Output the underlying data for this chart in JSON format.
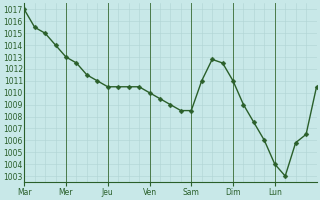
{
  "y_values": [
    1017,
    1015.5,
    1015,
    1014,
    1013,
    1012.5,
    1011.5,
    1011,
    1010.5,
    1010.5,
    1010.5,
    1010.5,
    1010,
    1009.5,
    1009,
    1008.5,
    1008.5,
    1011,
    1012.8,
    1012.5,
    1011,
    1009,
    1007.5,
    1006,
    1004,
    1003,
    1005.8,
    1006.5,
    1010.5
  ],
  "num_points": 29,
  "day_labels": [
    "Mar",
    "Mer",
    "Jeu",
    "Ven",
    "Sam",
    "Dim",
    "Lun"
  ],
  "day_tick_positions": [
    0,
    4,
    8,
    12,
    16,
    20,
    24
  ],
  "day_divider_positions": [
    4,
    8,
    12,
    16,
    20,
    24
  ],
  "ylim_min": 1002.5,
  "ylim_max": 1017.5,
  "xlim_min": 0,
  "xlim_max": 28,
  "ytick_values": [
    1003,
    1004,
    1005,
    1006,
    1007,
    1008,
    1009,
    1010,
    1011,
    1012,
    1013,
    1014,
    1015,
    1016,
    1017
  ],
  "line_color": "#2a5f2a",
  "bg_color": "#c8e8e8",
  "grid_minor_color": "#b0d4d4",
  "grid_major_color": "#96bebe",
  "divider_color": "#4a7a4a",
  "tick_color": "#2a5f2a",
  "spine_color": "#2a5f2a",
  "line_width": 1.0,
  "marker_size": 2.5,
  "tick_fontsize": 5.5,
  "minor_xtick_step": 1,
  "minor_ytick_step": 1
}
